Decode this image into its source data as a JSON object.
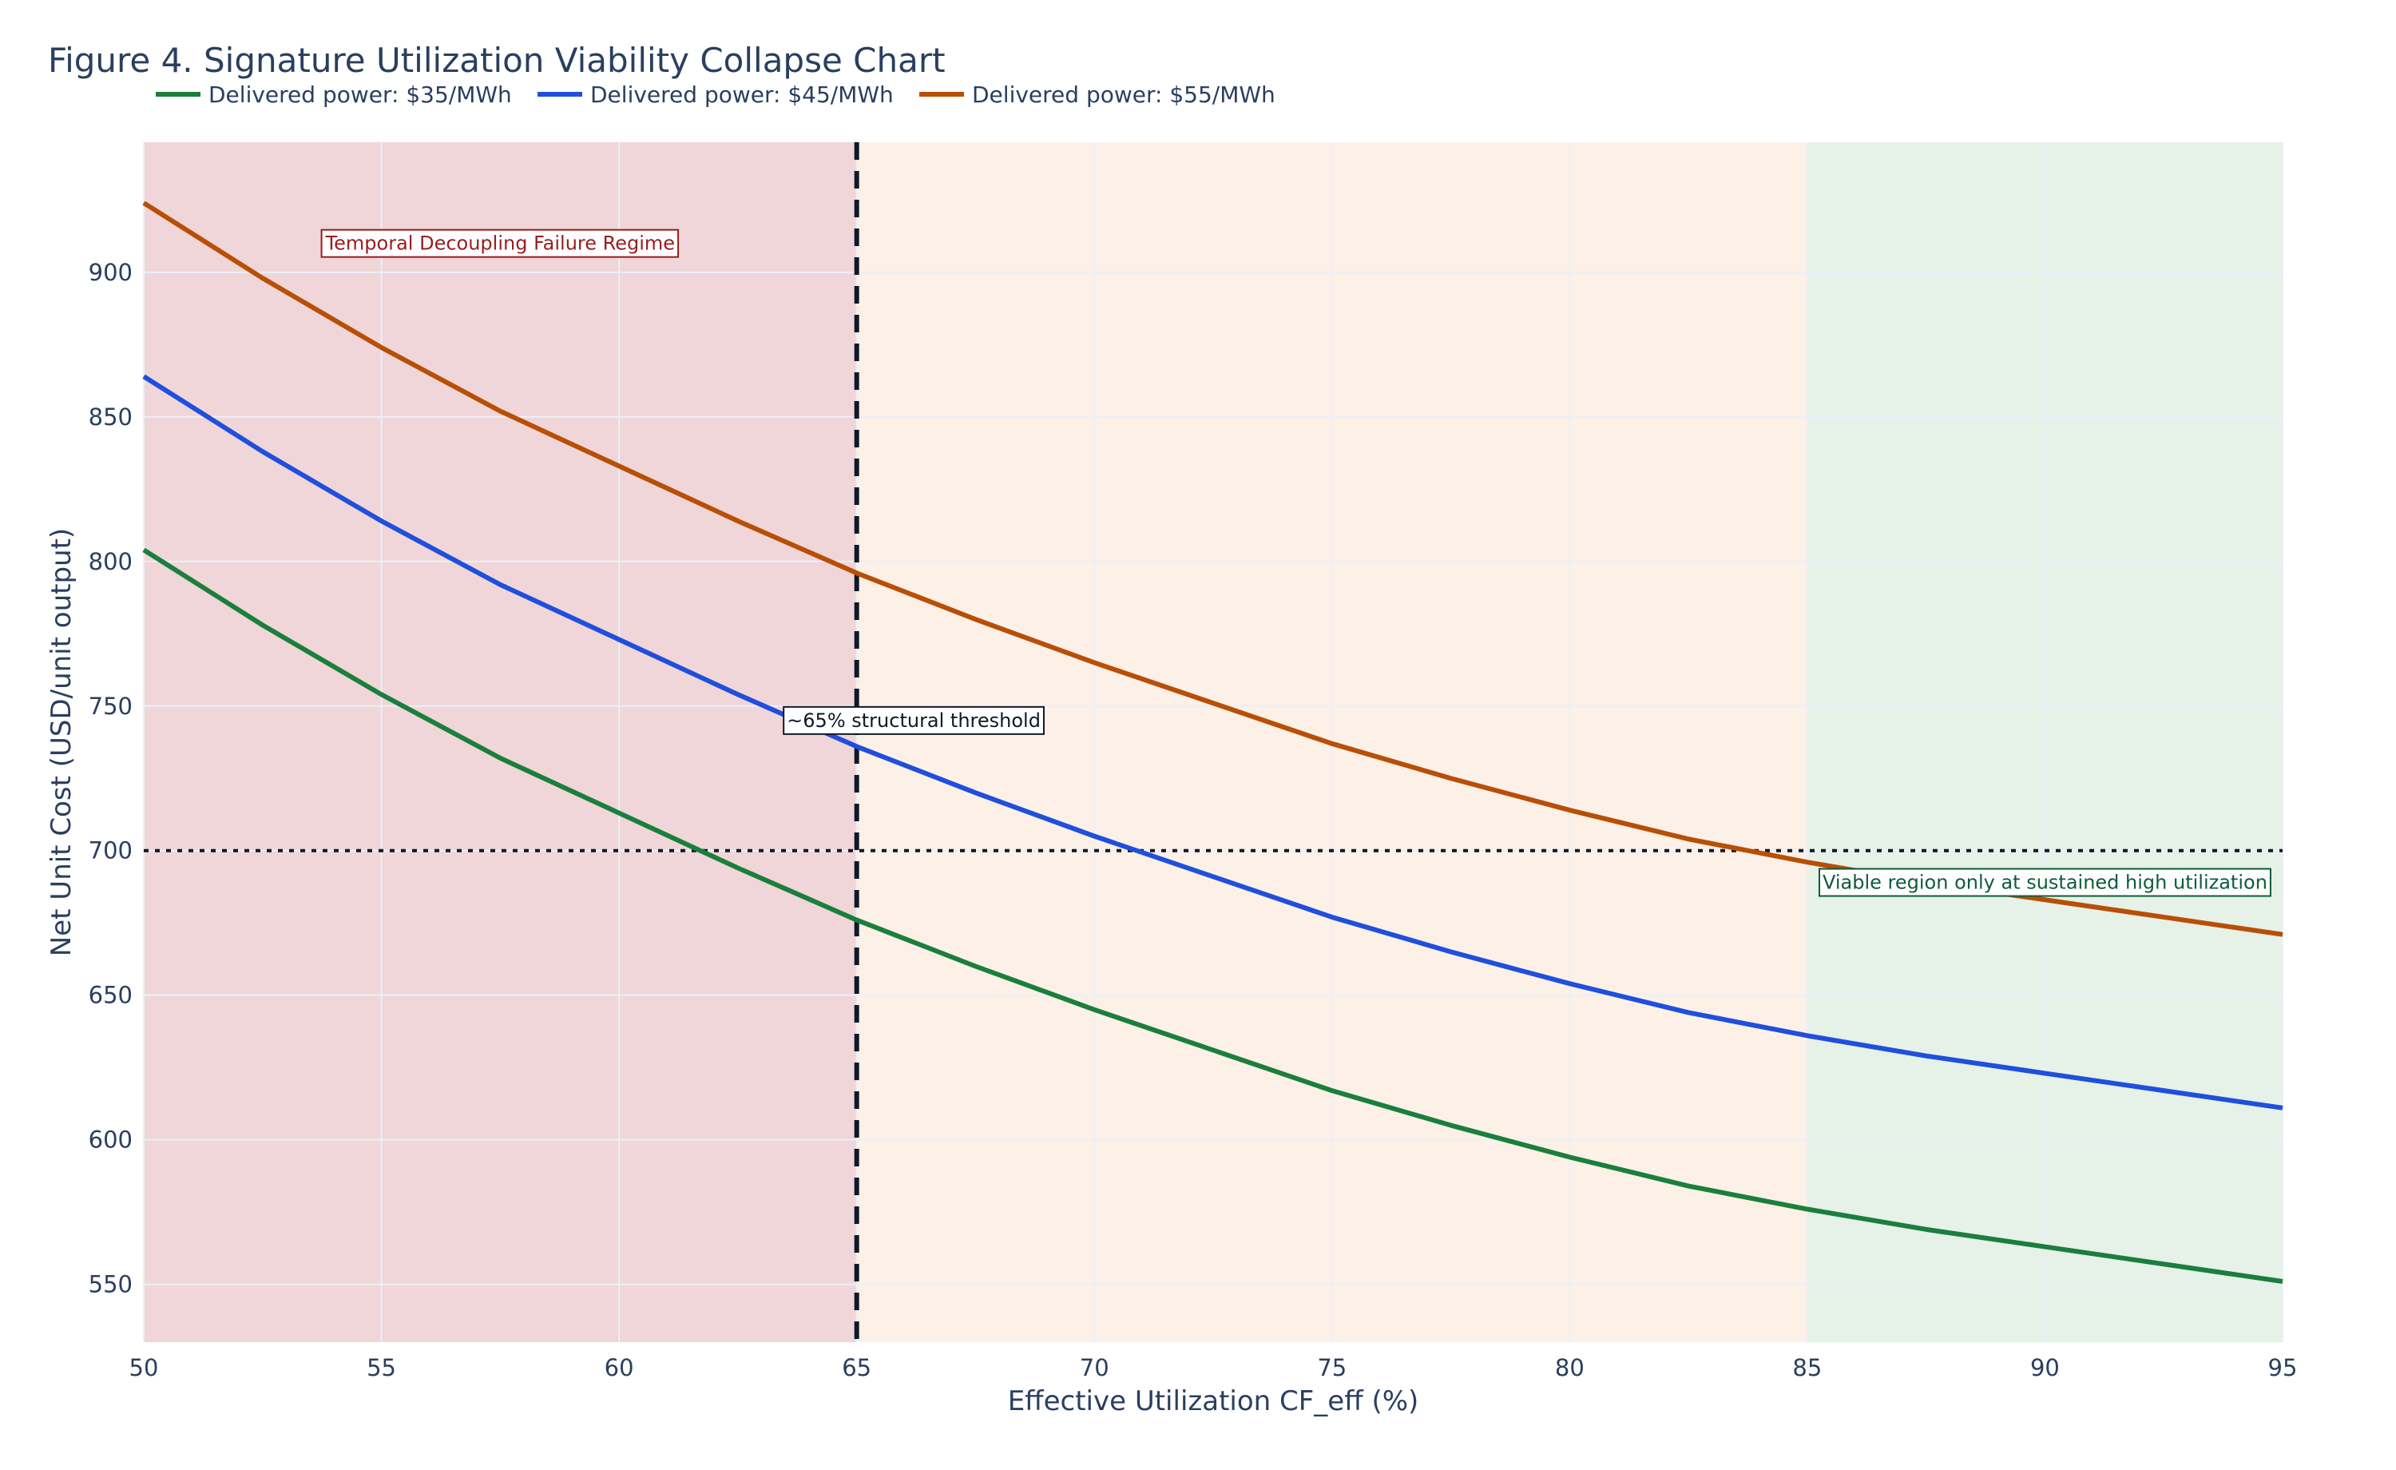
{
  "chart_data": {
    "type": "line",
    "title": "Figure 4. Signature Utilization Viability Collapse Chart",
    "xlabel": "Effective Utilization CF_eff (%)",
    "ylabel": "Net Unit Cost (USD/unit output)",
    "xlim": [
      50,
      95
    ],
    "ylim": [
      530,
      945
    ],
    "xticks": [
      50,
      55,
      60,
      65,
      70,
      75,
      80,
      85,
      90,
      95
    ],
    "yticks": [
      550,
      600,
      650,
      700,
      750,
      800,
      850,
      900
    ],
    "grid": true,
    "legend_placement": "top-left, horizontal",
    "x": [
      50,
      52.5,
      55,
      57.5,
      60,
      62.5,
      65,
      67.5,
      70,
      72.5,
      75,
      77.5,
      80,
      82.5,
      85,
      87.5,
      90,
      92.5,
      95
    ],
    "series": [
      {
        "name": "Delivered power: $35/MWh",
        "color": "#1a7f3c",
        "values": [
          804,
          778,
          754,
          732,
          713,
          694,
          676,
          660,
          645,
          631,
          617,
          605,
          594,
          584,
          576,
          569,
          563,
          557,
          551
        ]
      },
      {
        "name": "Delivered power: $45/MWh",
        "color": "#1f4fdc",
        "values": [
          864,
          838,
          814,
          792,
          773,
          754,
          736,
          720,
          705,
          691,
          677,
          665,
          654,
          644,
          636,
          629,
          623,
          617,
          611
        ]
      },
      {
        "name": "Delivered power: $55/MWh",
        "color": "#b84f06",
        "values": [
          924,
          898,
          874,
          852,
          833,
          814,
          796,
          780,
          765,
          751,
          737,
          725,
          714,
          704,
          696,
          689,
          683,
          677,
          671
        ]
      }
    ],
    "regions": [
      {
        "x0": 50,
        "x1": 65,
        "color": "#f0d6d8"
      },
      {
        "x0": 65,
        "x1": 85,
        "color": "#fdf0e7"
      },
      {
        "x0": 85,
        "x1": 95,
        "color": "#e6f1e8"
      }
    ],
    "reference_lines": [
      {
        "type": "vertical",
        "x": 65,
        "style": "dashed"
      },
      {
        "type": "horizontal",
        "y": 700,
        "style": "dotted"
      }
    ],
    "annotations": [
      {
        "text": "Temporal Decoupling Failure Regime",
        "x": 57.5,
        "y": 910,
        "color": "#9b1c1c"
      },
      {
        "text": "~65% structural threshold",
        "x": 66.2,
        "y": 745,
        "color": "#111827"
      },
      {
        "text": "Viable region only at sustained high utilization",
        "x": 90,
        "y": 689,
        "color": "#0d5c3a"
      }
    ]
  }
}
